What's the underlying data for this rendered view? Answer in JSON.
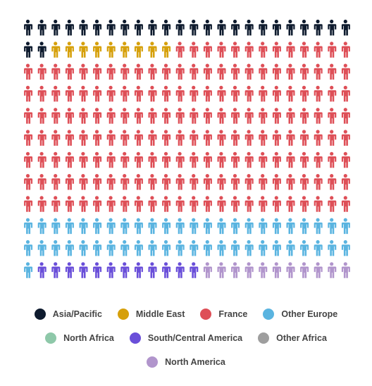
{
  "chart_data": {
    "type": "waffle",
    "title": "",
    "units_total": 288,
    "columns": 24,
    "rows": 12,
    "series": [
      {
        "name": "Asia/Pacific",
        "count": 26,
        "color": "#0e1b2e"
      },
      {
        "name": "Middle East",
        "count": 9,
        "color": "#d6a00b"
      },
      {
        "name": "France",
        "count": 181,
        "color": "#de4f57"
      },
      {
        "name": "Other Europe",
        "count": 49,
        "color": "#5ab4e0"
      },
      {
        "name": "North Africa",
        "count": 0,
        "color": "#8ec8a9"
      },
      {
        "name": "South/Central America",
        "count": 12,
        "color": "#6a4fd9"
      },
      {
        "name": "Other Africa",
        "count": 0,
        "color": "#9e9e9e"
      },
      {
        "name": "North America",
        "count": 11,
        "color": "#b195cc"
      }
    ],
    "legend_position": "bottom"
  }
}
